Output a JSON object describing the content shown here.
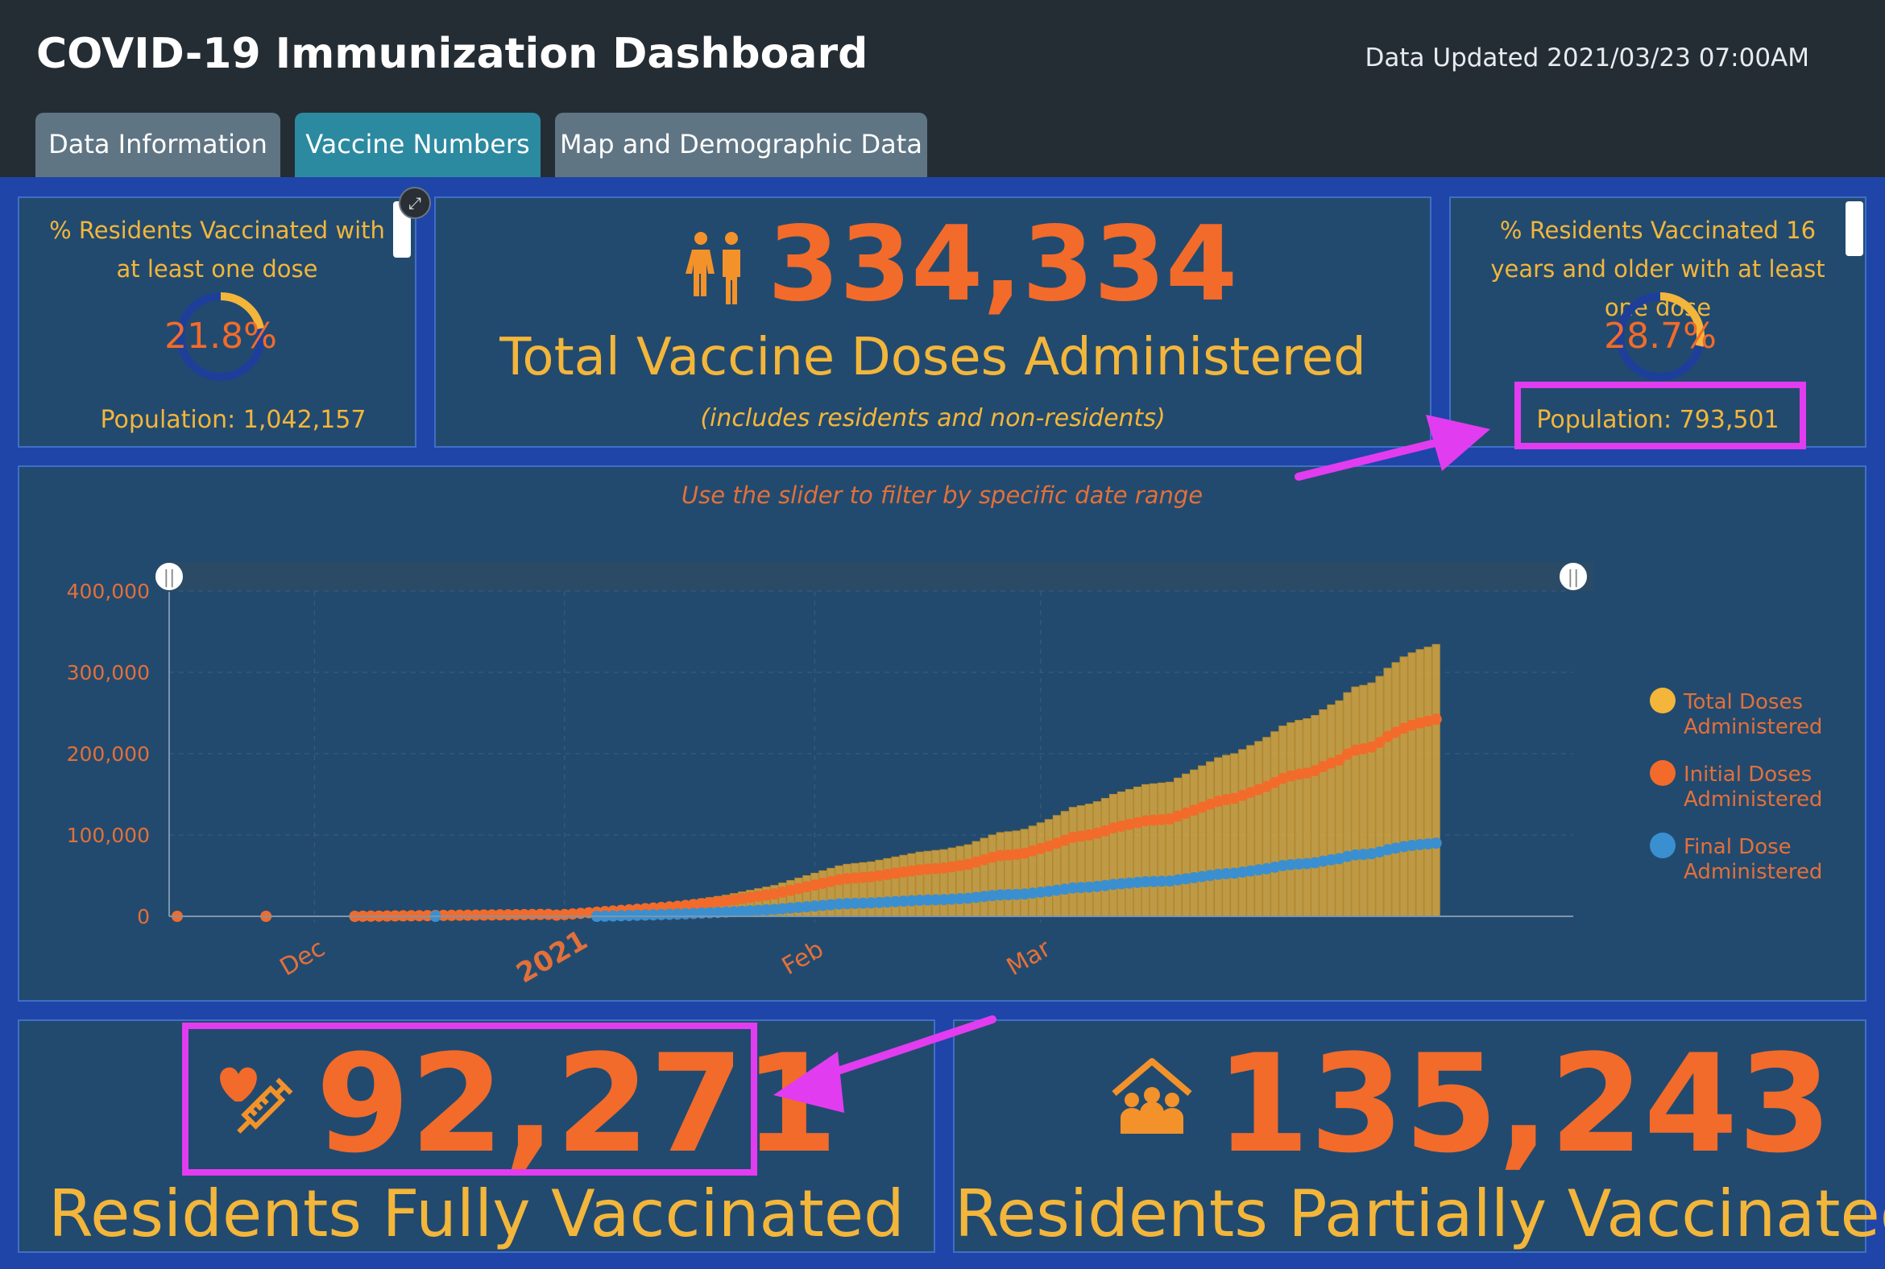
{
  "header": {
    "title": "COVID-19 Immunization Dashboard",
    "updated": "Data Updated 2021/03/23 07:00AM"
  },
  "tabs": [
    {
      "label": "Data Information"
    },
    {
      "label": "Vaccine Numbers"
    },
    {
      "label": "Map and Demographic Data"
    }
  ],
  "gauge_all": {
    "title": "% Residents Vaccinated with at least one dose",
    "value": "21.8%",
    "fraction": 0.218,
    "population": "Population: 1,042,157"
  },
  "total_doses": {
    "value": "334,334",
    "caption": "Total Vaccine Doses Administered",
    "note": "(includes residents and non-residents)"
  },
  "gauge_16": {
    "title": "% Residents Vaccinated 16 years and older with at least one dose",
    "value": "28.7%",
    "fraction": 0.287,
    "population": "Population: 793,501"
  },
  "chart_panel": {
    "hint": "Use the slider to filter by specific date range"
  },
  "fully_vaccinated": {
    "value": "92,271",
    "caption": "Residents Fully Vaccinated"
  },
  "partially_vaccinated": {
    "value": "135,243",
    "caption": "Residents Partially Vaccinated"
  },
  "colors": {
    "accent_orange": "#f26b2a",
    "accent_gold": "#f3b63a",
    "final_blue": "#3a8fd0",
    "highlight": "#e23cf0"
  },
  "chart_data": {
    "type": "bar",
    "title": "",
    "xlabel": "",
    "ylabel": "",
    "ylim": [
      0,
      400000
    ],
    "y_ticks": [
      "0",
      "100,000",
      "200,000",
      "300,000",
      "400,000"
    ],
    "x_ticks": [
      "Dec",
      "2021",
      "Feb",
      "Mar"
    ],
    "legend": [
      "Total Doses Administered",
      "Initial Doses Administered",
      "Final Dose Administered"
    ],
    "legend_position": "right",
    "dates_day_offsets_from_2020_11_15": [
      0,
      11,
      22,
      23,
      24,
      25,
      26,
      27,
      28,
      29,
      30,
      31,
      32,
      33,
      34,
      35,
      36,
      37,
      38,
      39,
      40,
      41,
      42,
      43,
      44,
      45,
      46,
      47,
      48,
      49,
      50,
      51,
      52,
      53,
      54,
      55,
      56,
      57,
      58,
      59,
      60,
      61,
      62,
      63,
      64,
      65,
      66,
      67,
      68,
      69,
      70,
      71,
      72,
      73,
      74,
      75,
      76,
      77,
      78,
      79,
      80,
      81,
      82,
      83,
      84,
      85,
      86,
      87,
      88,
      89,
      90,
      91,
      92,
      93,
      94,
      95,
      96,
      97,
      98,
      99,
      100,
      101,
      102,
      103,
      104,
      105,
      106,
      107,
      108,
      109,
      110,
      111,
      112,
      113,
      114,
      115,
      116,
      117,
      118,
      119,
      120,
      121,
      122,
      123,
      124,
      125,
      126,
      127,
      128,
      129,
      130,
      131,
      132,
      133,
      134,
      135,
      136,
      137,
      138,
      139,
      140,
      141,
      142,
      143,
      144,
      145,
      146,
      147,
      148,
      149,
      150,
      151,
      152,
      153,
      154,
      155,
      156,
      157,
      158,
      159,
      160,
      161,
      162,
      163,
      164,
      165,
      166,
      167,
      168,
      169,
      170,
      171,
      172,
      173
    ],
    "series": [
      {
        "name": "Total Doses Administered",
        "kind": "bar",
        "start_offset": 47,
        "values": [
          2000,
          3000,
          4000,
          5000,
          6000,
          7000,
          8000,
          9000,
          10000,
          11000,
          12000,
          13000,
          14000,
          15000,
          16000,
          17000,
          18500,
          20000,
          21500,
          23000,
          24500,
          26000,
          28000,
          30000,
          32000,
          34000,
          36000,
          38000,
          41000,
          44000,
          47000,
          50000,
          53000,
          56000,
          59000,
          62000,
          64000,
          65000,
          66000,
          67000,
          69000,
          71000,
          73000,
          75000,
          77000,
          79000,
          80000,
          81000,
          82000,
          84000,
          86000,
          88000,
          92000,
          96000,
          100000,
          103000,
          104000,
          105000,
          107000,
          111000,
          115000,
          119000,
          124000,
          129000,
          134000,
          136000,
          138000,
          141000,
          145000,
          150000,
          153000,
          156000,
          159000,
          162000,
          163000,
          164000,
          165000,
          170000,
          175000,
          180000,
          185000,
          190000,
          195000,
          198000,
          200000,
          205000,
          210000,
          215000,
          220000,
          227000,
          234000,
          238000,
          241000,
          243000,
          247000,
          254000,
          260000,
          265000,
          275000,
          282000,
          284000,
          287000,
          295000,
          305000,
          312000,
          319000,
          324000,
          328000,
          331000,
          334334
        ]
      },
      {
        "name": "Initial Doses Administered",
        "kind": "dots"
      },
      {
        "name": "Final Dose Administered",
        "kind": "dots"
      }
    ]
  }
}
